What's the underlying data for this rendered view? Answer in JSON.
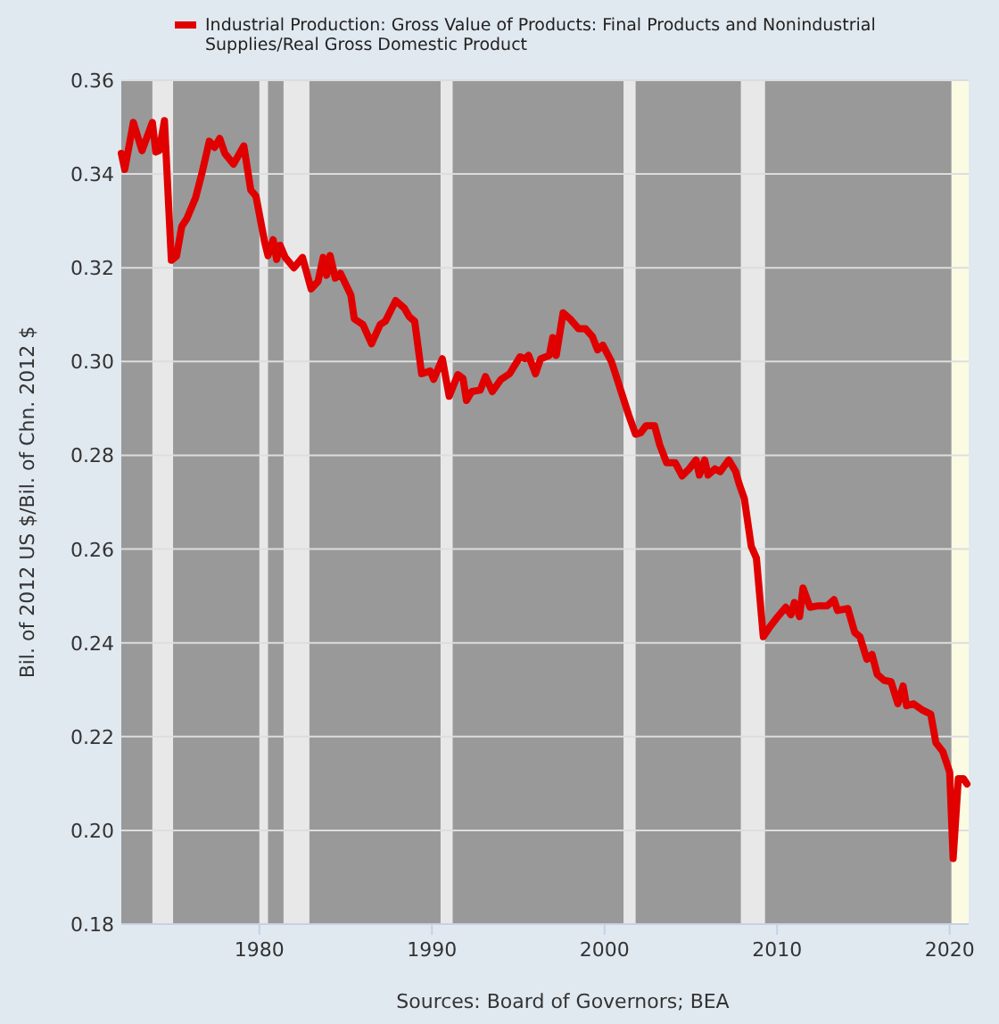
{
  "chart_data": {
    "type": "line",
    "ylabel": "Bil. of 2012 US $/Bil. of Chn. 2012 $",
    "annotations": [
      "Sources: Board of Governors; BEA"
    ],
    "xlim": [
      1972,
      2021.1
    ],
    "xticks": [
      1980,
      1990,
      2000,
      2010,
      2020
    ],
    "ylim": [
      0.18,
      0.36
    ],
    "yticks": [
      0.18,
      {
        "value": 0.2,
        "label": "0.20"
      },
      0.22,
      0.24,
      0.26,
      0.28,
      {
        "value": 0.3,
        "label": "0.30"
      },
      0.32,
      0.34,
      0.36
    ],
    "grid": "y",
    "legend": "top left",
    "bands": [
      {
        "axis": "x",
        "from": 1973.8,
        "to": 1975.0,
        "color": "#e8e8e8"
      },
      {
        "axis": "x",
        "from": 1980.0,
        "to": 1980.5,
        "color": "#e8e8e8"
      },
      {
        "axis": "x",
        "from": 1981.4,
        "to": 1982.9,
        "color": "#e8e8e8"
      },
      {
        "axis": "x",
        "from": 1990.5,
        "to": 1991.2,
        "color": "#e8e8e8"
      },
      {
        "axis": "x",
        "from": 2001.1,
        "to": 2001.8,
        "color": "#e8e8e8"
      },
      {
        "axis": "x",
        "from": 2007.9,
        "to": 2009.3,
        "color": "#e8e8e8"
      },
      {
        "axis": "x",
        "from": 2020.1,
        "to": 2021.1,
        "color": "#fbfbe4"
      }
    ],
    "series": [
      {
        "name": "Industrial Production: Gross Value of Products: Final Products and Nonindustrial Supplies/Real Gross Domestic Product",
        "color": "#e00000",
        "x": [
          1972.0,
          1972.2,
          1972.7,
          1973.2,
          1973.8,
          1974.0,
          1974.2,
          1974.5,
          1974.9,
          1975.2,
          1975.5,
          1975.8,
          1976.3,
          1976.7,
          1977.1,
          1977.4,
          1977.7,
          1978.0,
          1978.5,
          1979.1,
          1979.5,
          1979.8,
          1980.3,
          1980.5,
          1980.8,
          1981.0,
          1981.2,
          1981.5,
          1982.0,
          1982.5,
          1983.0,
          1983.4,
          1983.7,
          1983.9,
          1984.1,
          1984.4,
          1984.7,
          1985.3,
          1985.5,
          1986.0,
          1986.5,
          1987.0,
          1987.3,
          1987.9,
          1988.4,
          1988.7,
          1989.0,
          1989.4,
          1989.9,
          1990.1,
          1990.6,
          1991.0,
          1991.5,
          1991.8,
          1992.0,
          1992.3,
          1992.8,
          1993.1,
          1993.5,
          1994.0,
          1994.5,
          1995.1,
          1995.4,
          1995.6,
          1996.0,
          1996.3,
          1996.8,
          1997.0,
          1997.2,
          1997.6,
          1998.0,
          1998.5,
          1998.9,
          1999.3,
          1999.6,
          1999.9,
          2000.4,
          2000.9,
          2001.4,
          2001.8,
          2002.1,
          2002.4,
          2002.9,
          2003.2,
          2003.6,
          2004.1,
          2004.5,
          2004.9,
          2005.3,
          2005.5,
          2005.8,
          2006.0,
          2006.4,
          2006.7,
          2007.2,
          2007.6,
          2007.8,
          2008.1,
          2008.5,
          2008.8,
          2009.2,
          2009.6,
          2010.0,
          2010.5,
          2010.8,
          2011.0,
          2011.3,
          2011.5,
          2011.9,
          2012.4,
          2012.9,
          2013.3,
          2013.5,
          2014.1,
          2014.5,
          2014.8,
          2015.2,
          2015.5,
          2015.8,
          2016.2,
          2016.6,
          2017.0,
          2017.3,
          2017.5,
          2017.9,
          2018.4,
          2018.9,
          2019.2,
          2019.6,
          2020.0,
          2020.2,
          2020.5,
          2020.8,
          2021.0
        ],
        "values": [
          0.3444,
          0.341,
          0.351,
          0.345,
          0.351,
          0.3447,
          0.345,
          0.3514,
          0.3216,
          0.3225,
          0.3288,
          0.3305,
          0.3349,
          0.3406,
          0.347,
          0.3457,
          0.3476,
          0.3444,
          0.3421,
          0.346,
          0.3366,
          0.3353,
          0.3256,
          0.3226,
          0.326,
          0.3218,
          0.3248,
          0.3222,
          0.32,
          0.3222,
          0.3155,
          0.3171,
          0.3222,
          0.3184,
          0.3226,
          0.3178,
          0.3188,
          0.3142,
          0.3091,
          0.3079,
          0.3038,
          0.3079,
          0.3086,
          0.313,
          0.3114,
          0.3095,
          0.3086,
          0.2974,
          0.298,
          0.2962,
          0.3006,
          0.2926,
          0.2972,
          0.2964,
          0.2917,
          0.2936,
          0.2939,
          0.2968,
          0.2936,
          0.2962,
          0.2974,
          0.301,
          0.3006,
          0.3013,
          0.2974,
          0.3006,
          0.3013,
          0.3051,
          0.3013,
          0.3104,
          0.3091,
          0.307,
          0.307,
          0.3053,
          0.3025,
          0.3035,
          0.3,
          0.2943,
          0.2886,
          0.2845,
          0.2848,
          0.2863,
          0.2863,
          0.2822,
          0.2784,
          0.2784,
          0.2756,
          0.2771,
          0.279,
          0.2758,
          0.279,
          0.2758,
          0.2771,
          0.2765,
          0.279,
          0.2765,
          0.2739,
          0.2708,
          0.2606,
          0.2581,
          0.2413,
          0.2435,
          0.2454,
          0.2476,
          0.246,
          0.2486,
          0.2456,
          0.2517,
          0.2476,
          0.2479,
          0.2479,
          0.2492,
          0.2469,
          0.2473,
          0.2422,
          0.2413,
          0.2365,
          0.2375,
          0.2333,
          0.232,
          0.2317,
          0.227,
          0.2308,
          0.2266,
          0.227,
          0.2257,
          0.2248,
          0.2187,
          0.2168,
          0.2124,
          0.194,
          0.211,
          0.211,
          0.2099
        ]
      }
    ]
  }
}
